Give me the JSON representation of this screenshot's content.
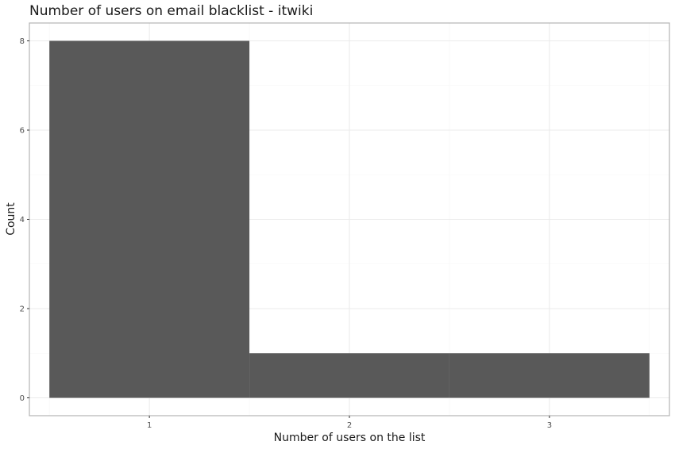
{
  "chart_data": {
    "type": "bar",
    "title": "Number of users on email blacklist - itwiki",
    "xlabel": "Number of users on the list",
    "ylabel": "Count",
    "categories": [
      "1",
      "2",
      "3"
    ],
    "bins": [
      {
        "from": 0.5,
        "to": 1.5,
        "count": 8
      },
      {
        "from": 1.5,
        "to": 2.5,
        "count": 1
      },
      {
        "from": 2.5,
        "to": 3.5,
        "count": 1
      }
    ],
    "x_ticks": [
      1,
      2,
      3
    ],
    "y_ticks": [
      0,
      2,
      4,
      6,
      8
    ],
    "xlim": [
      0.4,
      3.6
    ],
    "ylim": [
      -0.4,
      8.4
    ],
    "grid": true,
    "legend": "none",
    "colors": {
      "bar": "#595959",
      "grid_major": "#ebebeb",
      "grid_minor": "#f5f5f5",
      "panel_border": "#b3b3b3",
      "background": "#ffffff"
    }
  }
}
